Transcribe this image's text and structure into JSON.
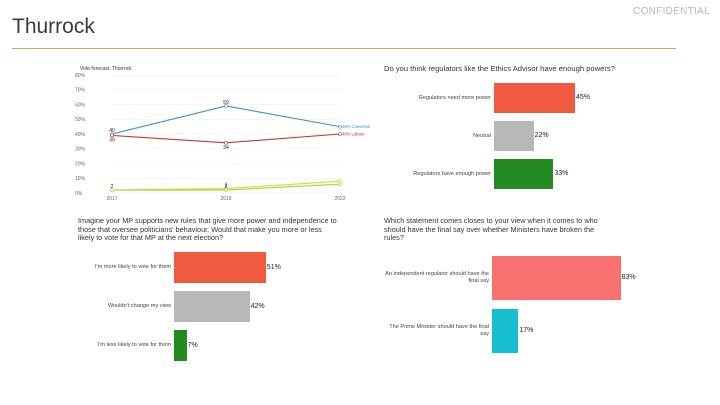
{
  "header": {
    "title": "Thurrock",
    "confidential": "CONFIDENTIAL"
  },
  "colors": {
    "accent_rule": "#e8a13a",
    "red": "#f05a40",
    "grey": "#b8b8b8",
    "green": "#228b22",
    "salmon": "#f87171",
    "teal": "#17becf",
    "conservative": "#3e8ed0",
    "labour": "#c0392b",
    "libdem": "#e0d820",
    "green_party": "#9ad84a"
  },
  "chart_data": [
    {
      "id": "vote_forecast",
      "type": "line",
      "title": "Vote forecast: Thurrock",
      "x": [
        "2017",
        "2019",
        "2022"
      ],
      "ylim": [
        0,
        80
      ],
      "yticks": [
        "0%",
        "10%",
        "20%",
        "30%",
        "40%",
        "50%",
        "60%",
        "70%",
        "80%"
      ],
      "grid": true,
      "series": [
        {
          "name": "Conservative",
          "values": [
            40,
            59,
            45
          ],
          "color": "#3e8ed0",
          "end_label": "45% Conservative"
        },
        {
          "name": "Labour",
          "values": [
            39,
            34,
            40
          ],
          "color": "#c0392b",
          "end_label": "40% Labour"
        },
        {
          "values": [
            2,
            3,
            8
          ],
          "color": "#e0d820",
          "end_label": ""
        },
        {
          "values": [
            2,
            2,
            6
          ],
          "color": "#9ad84a",
          "end_label": ""
        }
      ],
      "point_labels": [
        {
          "series": 0,
          "index": 0,
          "text": "40"
        },
        {
          "series": 1,
          "index": 0,
          "text": "39"
        },
        {
          "series": 0,
          "index": 1,
          "text": "59"
        },
        {
          "series": 1,
          "index": 1,
          "text": "34"
        },
        {
          "series": 2,
          "index": 0,
          "text": "2"
        },
        {
          "series": 2,
          "index": 1,
          "text": "3"
        },
        {
          "series": 3,
          "index": 1,
          "text": "2"
        }
      ]
    },
    {
      "id": "regulators",
      "type": "bar",
      "title": "Do you think regulators like the Ethics Advisor have enough powers?",
      "categories": [
        "Regulators need more power",
        "Neutral",
        "Regulators have enough power"
      ],
      "values": [
        45,
        22,
        33
      ],
      "labels": [
        "45%",
        "22%",
        "33%"
      ],
      "colors": [
        "#f05a40",
        "#b8b8b8",
        "#228b22"
      ]
    },
    {
      "id": "mp_rules",
      "type": "bar",
      "title": "Imagine your MP supports new rules that give more power and independence to those that oversee politicians' behaviour. Would that make you more or less likely to vote for that MP at the next election?",
      "categories": [
        "I'm more likely to vote for them",
        "Wouldn't change my view",
        "I'm less likely to vote for them"
      ],
      "values": [
        51,
        42,
        7
      ],
      "labels": [
        "51%",
        "42%",
        "7%"
      ],
      "colors": [
        "#f05a40",
        "#b8b8b8",
        "#228b22"
      ]
    },
    {
      "id": "final_say",
      "type": "bar",
      "title": "Which statement comes closes to your view when it comes to who should have the final say over whether Ministers have broken the rules?",
      "categories": [
        "An independent regulator should have the final say",
        "The Prime Minister should have the final say"
      ],
      "values": [
        83,
        17
      ],
      "labels": [
        "83%",
        "17%"
      ],
      "colors": [
        "#f87171",
        "#17becf"
      ]
    }
  ]
}
